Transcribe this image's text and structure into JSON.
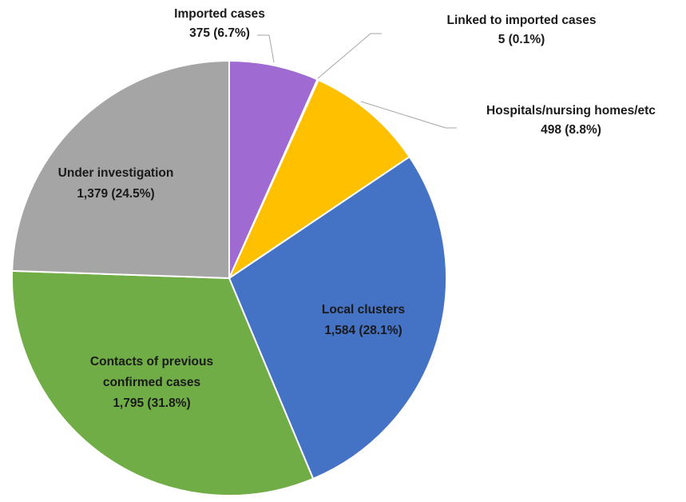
{
  "chart_data": {
    "type": "pie",
    "title": "",
    "start_angle_deg": 0,
    "direction": "clockwise",
    "slices": [
      {
        "label": "Imported cases",
        "value": 375,
        "value_text": "375",
        "percent_text": "(6.7%)",
        "color": "#9f6ad2"
      },
      {
        "label": "Linked to imported cases",
        "value": 5,
        "value_text": "5",
        "percent_text": "(0.1%)",
        "color": "#e8e8e8"
      },
      {
        "label": "Hospitals/nursing homes/etc",
        "value": 498,
        "value_text": "498",
        "percent_text": "(8.8%)",
        "color": "#ffc000"
      },
      {
        "label": "Local clusters",
        "value": 1584,
        "value_text": "1,584",
        "percent_text": "(28.1%)",
        "color": "#4472c4"
      },
      {
        "label": "Contacts of previous confirmed cases",
        "value": 1795,
        "value_text": "1,795",
        "percent_text": "(31.8%)",
        "color": "#70ad47"
      },
      {
        "label": "Under investigation",
        "value": 1379,
        "value_text": "1,379",
        "percent_text": "(24.5%)",
        "color": "#a5a5a5"
      }
    ]
  }
}
